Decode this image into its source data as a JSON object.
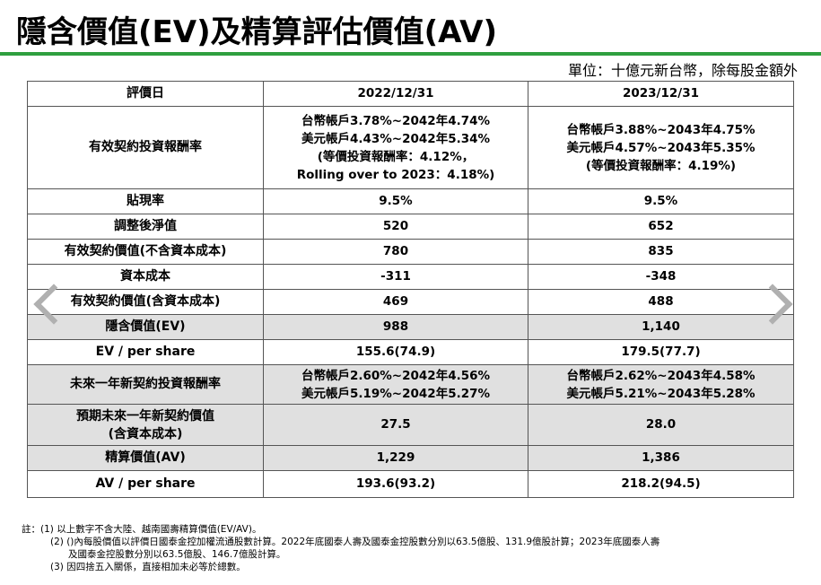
{
  "title": "隱含價值(EV)及精算評估價值(AV)",
  "unit_note": "單位：十億元新台幣，除每股金額外",
  "table": {
    "header": {
      "label": "評價日",
      "col1": "2022/12/31",
      "col2": "2023/12/31"
    },
    "effective_return": {
      "label": "有效契約投資報酬率",
      "col1": [
        "台幣帳戶3.78%~2042年4.74%",
        "美元帳戶4.43%~2042年5.34%",
        "(等價投資報酬率：4.12%，",
        "Rolling over to 2023：4.18%)"
      ],
      "col2": [
        "台幣帳戶3.88%~2043年4.75%",
        "美元帳戶4.57%~2043年5.35%",
        "(等價投資報酬率：4.19%)"
      ]
    },
    "rows": [
      {
        "label": "貼現率",
        "col1": "9.5%",
        "col2": "9.5%",
        "shaded": false
      },
      {
        "label": "調整後淨值",
        "col1": "520",
        "col2": "652",
        "shaded": false
      },
      {
        "label": "有效契約價值(不含資本成本)",
        "col1": "780",
        "col2": "835",
        "shaded": false
      },
      {
        "label": "資本成本",
        "col1": "-311",
        "col2": "-348",
        "shaded": false
      },
      {
        "label": "有效契約價值(含資本成本)",
        "col1": "469",
        "col2": "488",
        "shaded": false
      },
      {
        "label": "隱含價值(EV)",
        "col1": "988",
        "col2": "1,140",
        "shaded": true
      },
      {
        "label": "EV / per share",
        "col1": "155.6(74.9)",
        "col2": "179.5(77.7)",
        "shaded": false
      }
    ],
    "new_business_return": {
      "label": "未來一年新契約投資報酬率",
      "col1": [
        "台幣帳戶2.60%~2042年4.56%",
        "美元帳戶5.19%~2042年5.27%"
      ],
      "col2": [
        "台幣帳戶2.62%~2043年4.58%",
        "美元帳戶5.21%~2043年5.28%"
      ]
    },
    "new_business_value": {
      "label": [
        "預期未來一年新契約價值",
        "(含資本成本)"
      ],
      "col1": "27.5",
      "col2": "28.0"
    },
    "av": {
      "label": "精算價值(AV)",
      "col1": "1,229",
      "col2": "1,386"
    },
    "av_per_share": {
      "label": "AV / per share",
      "col1": "193.6(93.2)",
      "col2": "218.2(94.5)"
    }
  },
  "notes": [
    "註：(1) 以上數字不含大陸、越南國壽精算價值(EV/AV)。",
    "(2) ()內每股價值以評價日國泰金控加權流通股數計算。2022年底國泰人壽及國泰金控股數分別以63.5億股、131.9億股計算；2023年底國泰人壽",
    "及國泰金控股數分別以63.5億股、146.7億股計算。",
    "(3) 因四捨五入關係，直接相加未必等於總數。"
  ]
}
